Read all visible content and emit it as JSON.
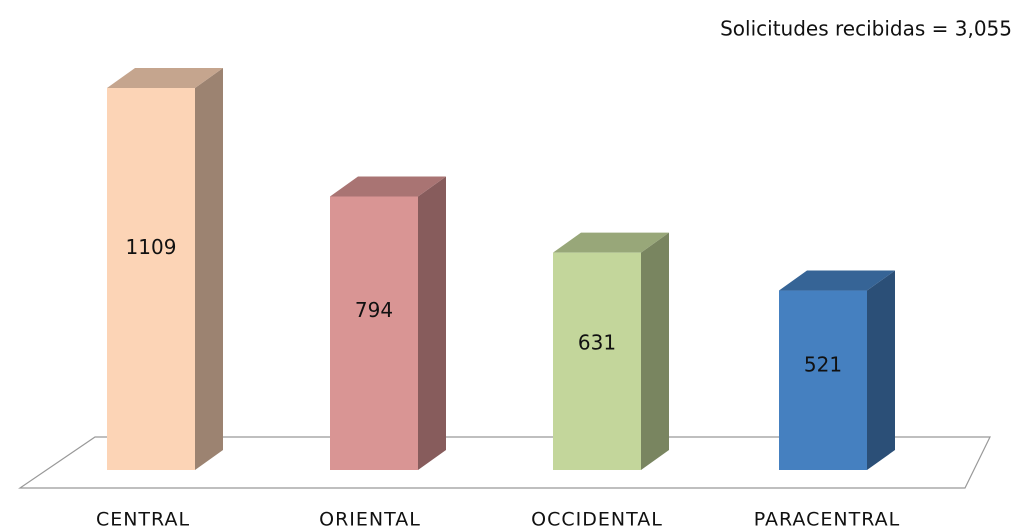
{
  "chart_data": {
    "type": "bar3d",
    "annotation": "Solicitudes recibidas = 3,055",
    "categories": [
      "CENTRAL",
      "ORIENTAL",
      "OCCIDENTAL",
      "PARACENTRAL"
    ],
    "values": [
      1109,
      794,
      631,
      521
    ],
    "colors": [
      "#fcd4b6",
      "#d99594",
      "#c3d69b",
      "#4580c0"
    ]
  }
}
